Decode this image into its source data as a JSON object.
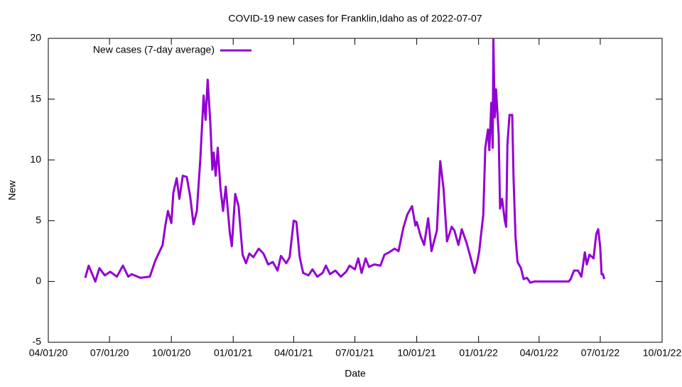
{
  "chart_data": {
    "type": "line",
    "title": "COVID-19 new cases for Franklin,Idaho as of 2022-07-07",
    "x_label": "Date",
    "y_label": "New",
    "legend": "top left",
    "xlim": [
      "2020-04-01",
      "2022-10-01"
    ],
    "xticks": [
      {
        "value": "2020-04-01",
        "label": "04/01/20"
      },
      {
        "value": "2020-07-01",
        "label": "07/01/20"
      },
      {
        "value": "2020-10-01",
        "label": "10/01/20"
      },
      {
        "value": "2021-01-01",
        "label": "01/01/21"
      },
      {
        "value": "2021-04-01",
        "label": "04/01/21"
      },
      {
        "value": "2021-07-01",
        "label": "07/01/21"
      },
      {
        "value": "2021-10-01",
        "label": "10/01/21"
      },
      {
        "value": "2022-01-01",
        "label": "01/01/22"
      },
      {
        "value": "2022-04-01",
        "label": "04/01/22"
      },
      {
        "value": "2022-07-01",
        "label": "07/01/22"
      },
      {
        "value": "2022-10-01",
        "label": "10/01/22"
      }
    ],
    "ylim": [
      -5,
      20
    ],
    "yticks": [
      -5,
      0,
      5,
      10,
      15,
      20
    ],
    "x": [
      "2020-05-26",
      "2020-05-31",
      "2020-06-10",
      "2020-06-16",
      "2020-06-24",
      "2020-07-02",
      "2020-07-12",
      "2020-07-21",
      "2020-07-29",
      "2020-08-03",
      "2020-08-16",
      "2020-08-30",
      "2020-09-07",
      "2020-09-18",
      "2020-09-22",
      "2020-09-26",
      "2020-10-01",
      "2020-10-04",
      "2020-10-09",
      "2020-10-13",
      "2020-10-18",
      "2020-10-24",
      "2020-10-29",
      "2020-11-03",
      "2020-11-08",
      "2020-11-13",
      "2020-11-18",
      "2020-11-21",
      "2020-11-24",
      "2020-11-28",
      "2020-12-01",
      "2020-12-03",
      "2020-12-06",
      "2020-12-09",
      "2020-12-13",
      "2020-12-17",
      "2020-12-21",
      "2020-12-27",
      "2020-12-30",
      "2021-01-04",
      "2021-01-09",
      "2021-01-15",
      "2021-01-20",
      "2021-01-25",
      "2021-01-31",
      "2021-02-08",
      "2021-02-15",
      "2021-02-22",
      "2021-03-01",
      "2021-03-08",
      "2021-03-13",
      "2021-03-21",
      "2021-03-26",
      "2021-04-01",
      "2021-04-05",
      "2021-04-10",
      "2021-04-15",
      "2021-04-23",
      "2021-04-29",
      "2021-05-06",
      "2021-05-14",
      "2021-05-19",
      "2021-05-25",
      "2021-06-02",
      "2021-06-10",
      "2021-06-18",
      "2021-06-23",
      "2021-07-01",
      "2021-07-06",
      "2021-07-11",
      "2021-07-17",
      "2021-07-22",
      "2021-07-30",
      "2021-08-08",
      "2021-08-14",
      "2021-08-21",
      "2021-08-29",
      "2021-09-04",
      "2021-09-11",
      "2021-09-17",
      "2021-09-24",
      "2021-09-29",
      "2021-10-01",
      "2021-10-07",
      "2021-10-12",
      "2021-10-18",
      "2021-10-23",
      "2021-10-31",
      "2021-11-05",
      "2021-11-10",
      "2021-11-15",
      "2021-11-22",
      "2021-11-26",
      "2021-12-02",
      "2021-12-07",
      "2021-12-14",
      "2021-12-20",
      "2021-12-26",
      "2021-12-30",
      "2022-01-02",
      "2022-01-08",
      "2022-01-11",
      "2022-01-15",
      "2022-01-17",
      "2022-01-20",
      "2022-01-22",
      "2022-01-23",
      "2022-01-25",
      "2022-01-27",
      "2022-01-31",
      "2022-02-02",
      "2022-02-05",
      "2022-02-09",
      "2022-02-11",
      "2022-02-13",
      "2022-02-16",
      "2022-02-20",
      "2022-02-22",
      "2022-02-25",
      "2022-02-28",
      "2022-03-05",
      "2022-03-09",
      "2022-03-14",
      "2022-03-19",
      "2022-03-25",
      "2022-05-08",
      "2022-05-15",
      "2022-05-18",
      "2022-05-23",
      "2022-05-29",
      "2022-06-03",
      "2022-06-08",
      "2022-06-11",
      "2022-06-15",
      "2022-06-21",
      "2022-06-25",
      "2022-06-28",
      "2022-07-01",
      "2022-07-03",
      "2022-07-05",
      "2022-07-07"
    ],
    "series": [
      {
        "name": "New cases (7-day average)",
        "color": "#9400d3",
        "values": [
          0.3,
          1.3,
          0.0,
          1.1,
          0.5,
          0.8,
          0.4,
          1.3,
          0.4,
          0.6,
          0.3,
          0.4,
          1.7,
          3.0,
          4.6,
          5.8,
          4.8,
          7.3,
          8.5,
          6.8,
          8.7,
          8.6,
          7.0,
          4.7,
          5.8,
          10.0,
          15.3,
          13.3,
          16.6,
          13.0,
          9.2,
          10.6,
          8.7,
          11.0,
          7.7,
          5.8,
          7.8,
          4.0,
          2.9,
          7.2,
          6.2,
          2.2,
          1.5,
          2.3,
          2.0,
          2.7,
          2.3,
          1.4,
          1.6,
          0.9,
          2.1,
          1.5,
          2.0,
          5.0,
          4.9,
          2.0,
          0.7,
          0.5,
          1.0,
          0.4,
          0.7,
          1.3,
          0.6,
          0.9,
          0.4,
          0.8,
          1.3,
          1.0,
          1.9,
          0.7,
          1.9,
          1.2,
          1.4,
          1.3,
          2.2,
          2.4,
          2.7,
          2.5,
          4.4,
          5.5,
          6.2,
          4.6,
          4.9,
          3.7,
          3.0,
          5.2,
          2.5,
          4.2,
          9.9,
          7.6,
          3.3,
          4.5,
          4.2,
          3.0,
          4.3,
          3.2,
          2.0,
          0.7,
          1.6,
          2.5,
          5.5,
          11.0,
          12.5,
          10.8,
          14.7,
          11.0,
          19.9,
          13.5,
          15.8,
          12.0,
          6.0,
          6.8,
          5.0,
          4.5,
          11.3,
          13.7,
          13.7,
          8.5,
          3.6,
          1.6,
          1.1,
          0.2,
          0.3,
          -0.1,
          0.0,
          0.0,
          0.0,
          0.2,
          0.9,
          0.9,
          0.4,
          2.4,
          1.4,
          2.2,
          1.9,
          3.9,
          4.3,
          2.8,
          0.6,
          0.6,
          0.2
        ]
      }
    ]
  }
}
